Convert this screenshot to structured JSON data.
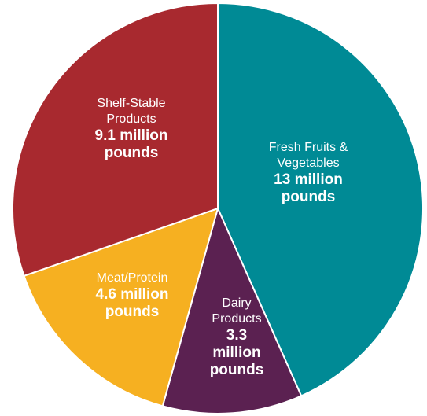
{
  "chart_data": {
    "type": "pie",
    "unit": "million pounds",
    "slices": [
      {
        "label": "Fresh Fruits & Vegetables",
        "name_lines": [
          "Fresh Fruits &",
          "Vegetables"
        ],
        "value": 13,
        "value_lines": [
          "13 million",
          "pounds"
        ],
        "color": "#008A95"
      },
      {
        "label": "Dairy Products",
        "name_lines": [
          "Dairy",
          "Products"
        ],
        "value": 3.3,
        "value_lines": [
          "3.3",
          "million",
          "pounds"
        ],
        "color": "#5B2151"
      },
      {
        "label": "Meat/Protein",
        "name_lines": [
          "Meat/Protein"
        ],
        "value": 4.6,
        "value_lines": [
          "4.6 million",
          "pounds"
        ],
        "color": "#F6B021"
      },
      {
        "label": "Shelf-Stable Products",
        "name_lines": [
          "Shelf-Stable",
          "Products"
        ],
        "value": 9.1,
        "value_lines": [
          "9.1 million",
          "pounds"
        ],
        "color": "#A8292F"
      }
    ]
  }
}
